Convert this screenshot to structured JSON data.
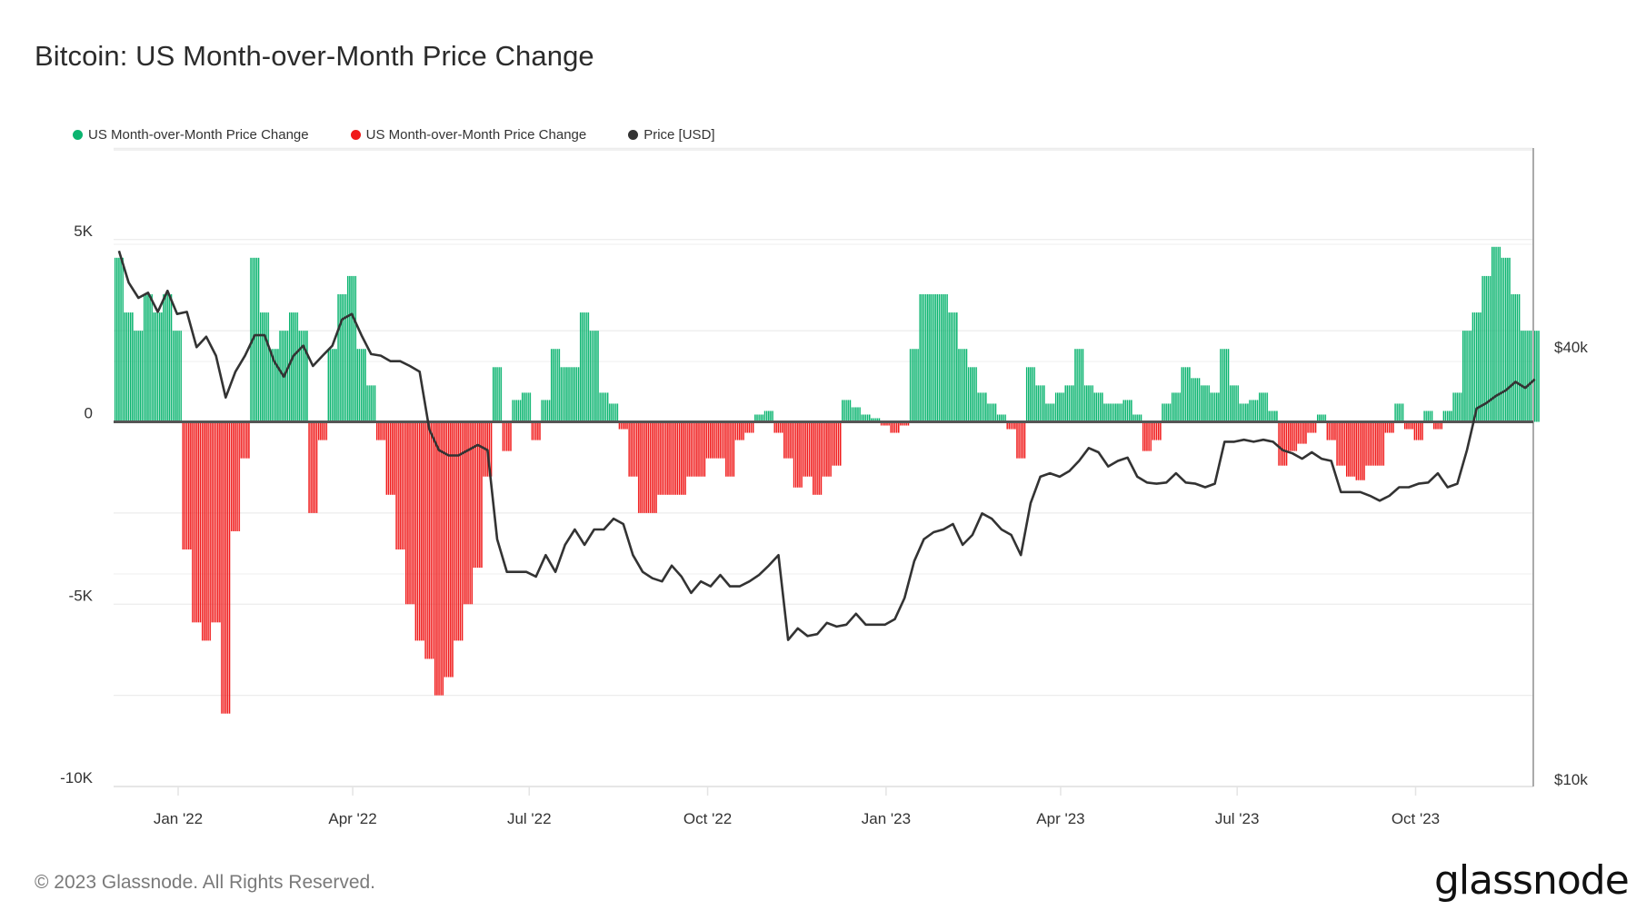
{
  "title": "Bitcoin: US Month-over-Month Price Change",
  "legend": [
    {
      "label": "US Month-over-Month Price Change",
      "color": "#0bb470"
    },
    {
      "label": "US Month-over-Month Price Change",
      "color": "#f01a1a"
    },
    {
      "label": "Price [USD]",
      "color": "#333333"
    }
  ],
  "footer": "© 2023 Glassnode. All Rights Reserved.",
  "logo": "glassnode",
  "chart_data": {
    "type": "bar",
    "title": "Bitcoin: US Month-over-Month Price Change",
    "grid": true,
    "legend_position": "top-left",
    "x_ticks": [
      {
        "date": "2022-01-01",
        "label": "Jan '22"
      },
      {
        "date": "2022-04-01",
        "label": "Apr '22"
      },
      {
        "date": "2022-07-01",
        "label": "Jul '22"
      },
      {
        "date": "2022-10-01",
        "label": "Oct '22"
      },
      {
        "date": "2023-01-01",
        "label": "Jan '23"
      },
      {
        "date": "2023-04-01",
        "label": "Apr '23"
      },
      {
        "date": "2023-07-01",
        "label": "Jul '23"
      },
      {
        "date": "2023-10-01",
        "label": "Oct '23"
      }
    ],
    "y_left": {
      "ylim": [
        -10000,
        7460
      ],
      "ticks": [
        {
          "value": 5000,
          "label": "5K"
        },
        {
          "value": 0,
          "label": "0"
        },
        {
          "value": -5000,
          "label": "-5K"
        },
        {
          "value": -10000,
          "label": "-10K"
        }
      ]
    },
    "y_right": {
      "scale": "log",
      "ylim": [
        10000,
        77000
      ],
      "ticks": [
        {
          "value": 40000,
          "label": "$40k"
        },
        {
          "value": 10000,
          "label": "$10k"
        }
      ]
    },
    "colors": {
      "positive": "#0bb470",
      "negative": "#f01a1a",
      "price": "#333333",
      "zero_line": "#555555"
    },
    "x": [
      "2021-11-29",
      "2021-12-04",
      "2021-12-09",
      "2021-12-14",
      "2021-12-19",
      "2021-12-24",
      "2021-12-29",
      "2022-01-03",
      "2022-01-08",
      "2022-01-13",
      "2022-01-18",
      "2022-01-23",
      "2022-01-28",
      "2022-02-02",
      "2022-02-07",
      "2022-02-12",
      "2022-02-17",
      "2022-02-22",
      "2022-02-27",
      "2022-03-04",
      "2022-03-09",
      "2022-03-14",
      "2022-03-19",
      "2022-03-24",
      "2022-03-29",
      "2022-04-03",
      "2022-04-08",
      "2022-04-13",
      "2022-04-18",
      "2022-04-23",
      "2022-04-28",
      "2022-05-03",
      "2022-05-08",
      "2022-05-13",
      "2022-05-18",
      "2022-05-23",
      "2022-05-28",
      "2022-06-02",
      "2022-06-07",
      "2022-06-12",
      "2022-06-17",
      "2022-06-22",
      "2022-06-27",
      "2022-07-02",
      "2022-07-07",
      "2022-07-12",
      "2022-07-17",
      "2022-07-22",
      "2022-07-27",
      "2022-08-01",
      "2022-08-06",
      "2022-08-11",
      "2022-08-16",
      "2022-08-21",
      "2022-08-26",
      "2022-08-31",
      "2022-09-05",
      "2022-09-10",
      "2022-09-15",
      "2022-09-20",
      "2022-09-25",
      "2022-09-30",
      "2022-10-05",
      "2022-10-10",
      "2022-10-15",
      "2022-10-20",
      "2022-10-25",
      "2022-10-30",
      "2022-11-04",
      "2022-11-09",
      "2022-11-14",
      "2022-11-19",
      "2022-11-24",
      "2022-11-29",
      "2022-12-04",
      "2022-12-09",
      "2022-12-14",
      "2022-12-19",
      "2022-12-24",
      "2022-12-29",
      "2023-01-03",
      "2023-01-08",
      "2023-01-13",
      "2023-01-18",
      "2023-01-23",
      "2023-01-28",
      "2023-02-02",
      "2023-02-07",
      "2023-02-12",
      "2023-02-17",
      "2023-02-22",
      "2023-02-27",
      "2023-03-04",
      "2023-03-09",
      "2023-03-14",
      "2023-03-19",
      "2023-03-24",
      "2023-03-29",
      "2023-04-03",
      "2023-04-08",
      "2023-04-13",
      "2023-04-18",
      "2023-04-23",
      "2023-04-28",
      "2023-05-03",
      "2023-05-08",
      "2023-05-13",
      "2023-05-18",
      "2023-05-23",
      "2023-05-28",
      "2023-06-02",
      "2023-06-07",
      "2023-06-12",
      "2023-06-17",
      "2023-06-22",
      "2023-06-27",
      "2023-07-02",
      "2023-07-07",
      "2023-07-12",
      "2023-07-17",
      "2023-07-22",
      "2023-07-27",
      "2023-08-01",
      "2023-08-06",
      "2023-08-11",
      "2023-08-16",
      "2023-08-21",
      "2023-08-26",
      "2023-08-31",
      "2023-09-05",
      "2023-09-10",
      "2023-09-15",
      "2023-09-20",
      "2023-09-25",
      "2023-09-30",
      "2023-10-05",
      "2023-10-10",
      "2023-10-15",
      "2023-10-20",
      "2023-10-25",
      "2023-10-30",
      "2023-11-04",
      "2023-11-09",
      "2023-11-14",
      "2023-11-19",
      "2023-11-24",
      "2023-11-29"
    ],
    "series": [
      {
        "name": "US Month-over-Month Price Change",
        "axis": "left",
        "values": [
          4500,
          3000,
          2500,
          3500,
          3000,
          3500,
          2500,
          -3500,
          -5500,
          -6000,
          -5500,
          -8000,
          -3000,
          -1000,
          4500,
          3000,
          2000,
          2500,
          3000,
          2500,
          -2500,
          -500,
          2000,
          3500,
          4000,
          2000,
          1000,
          -500,
          -2000,
          -3500,
          -5000,
          -6000,
          -6500,
          -7500,
          -7000,
          -6000,
          -5000,
          -4000,
          -1500,
          1500,
          -800,
          600,
          800,
          -500,
          600,
          2000,
          1500,
          1500,
          3000,
          2500,
          800,
          500,
          -200,
          -1500,
          -2500,
          -2500,
          -2000,
          -2000,
          -2000,
          -1500,
          -1500,
          -1000,
          -1000,
          -1500,
          -500,
          -300,
          200,
          300,
          -300,
          -1000,
          -1800,
          -1500,
          -2000,
          -1500,
          -1200,
          600,
          400,
          200,
          100,
          -100,
          -300,
          -100,
          2000,
          3500,
          3500,
          3500,
          3000,
          2000,
          1500,
          800,
          500,
          200,
          -200,
          -1000,
          1500,
          1000,
          500,
          800,
          1000,
          2000,
          1000,
          800,
          500,
          500,
          600,
          200,
          -800,
          -500,
          500,
          800,
          1500,
          1200,
          1000,
          800,
          2000,
          1000,
          500,
          600,
          800,
          300,
          -1200,
          -800,
          -600,
          -300,
          200,
          -500,
          -1200,
          -1500,
          -1600,
          -1200,
          -1200,
          -300,
          500,
          -200,
          -500,
          300,
          -200,
          300,
          800,
          2500,
          3000,
          4000,
          4800,
          4500,
          3500,
          2500,
          2500
        ]
      },
      {
        "name": "Price [USD]",
        "axis": "right",
        "values": [
          55700,
          50300,
          47900,
          48700,
          45800,
          49000,
          45500,
          45800,
          40900,
          42300,
          39800,
          34800,
          37800,
          39800,
          42500,
          42500,
          39100,
          37200,
          39800,
          41100,
          38500,
          39800,
          41100,
          44700,
          45500,
          42500,
          40000,
          39800,
          39100,
          39100,
          38500,
          37800,
          31400,
          29400,
          28900,
          28900,
          29400,
          29900,
          29400,
          22100,
          19900,
          19900,
          19900,
          19600,
          21000,
          19900,
          21700,
          22800,
          21700,
          22800,
          22800,
          23600,
          23200,
          21000,
          19900,
          19500,
          19300,
          20300,
          19600,
          18600,
          19300,
          19000,
          19700,
          19000,
          19000,
          19300,
          19700,
          20300,
          21000,
          16000,
          16600,
          16200,
          16300,
          16900,
          16700,
          16800,
          17400,
          16800,
          16800,
          16800,
          17100,
          18300,
          20600,
          22100,
          22600,
          22800,
          23200,
          21700,
          22400,
          24000,
          23600,
          22800,
          22400,
          21000,
          24800,
          27000,
          27300,
          27000,
          27500,
          28400,
          29600,
          29200,
          27900,
          28400,
          28700,
          27000,
          26500,
          26400,
          26500,
          27300,
          26500,
          26400,
          26100,
          26400,
          30200,
          30200,
          30400,
          30200,
          30400,
          30200,
          29400,
          29100,
          28600,
          29200,
          28600,
          28400,
          25700,
          25700,
          25700,
          25400,
          25000,
          25400,
          26100,
          26100,
          26400,
          26500,
          27300,
          26100,
          26400,
          29400,
          33600,
          34200,
          35000,
          35600,
          36600,
          35900,
          36900
        ]
      }
    ]
  }
}
